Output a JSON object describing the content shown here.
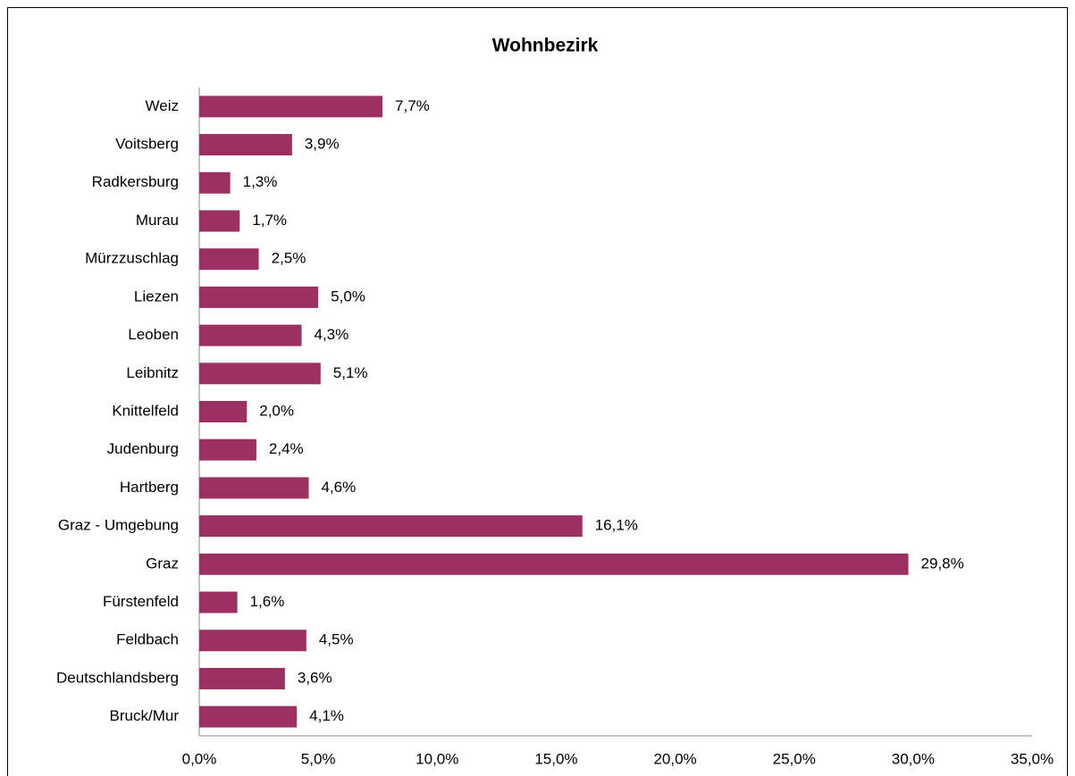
{
  "chart_data": {
    "type": "bar",
    "orientation": "horizontal",
    "title": "Wohnbezirk",
    "categories": [
      "Weiz",
      "Voitsberg",
      "Radkersburg",
      "Murau",
      "Mürzzuschlag",
      "Liezen",
      "Leoben",
      "Leibnitz",
      "Knittelfeld",
      "Judenburg",
      "Hartberg",
      "Graz - Umgebung",
      "Graz",
      "Fürstenfeld",
      "Feldbach",
      "Deutschlandsberg",
      "Bruck/Mur"
    ],
    "values": [
      7.7,
      3.9,
      1.3,
      1.7,
      2.5,
      5.0,
      4.3,
      5.1,
      2.0,
      2.4,
      4.6,
      16.1,
      29.8,
      1.6,
      4.5,
      3.6,
      4.1
    ],
    "value_labels": [
      "7,7%",
      "3,9%",
      "1,3%",
      "1,7%",
      "2,5%",
      "5,0%",
      "4,3%",
      "5,1%",
      "2,0%",
      "2,4%",
      "4,6%",
      "16,1%",
      "29,8%",
      "1,6%",
      "4,5%",
      "3,6%",
      "4,1%"
    ],
    "color": "#9b3163",
    "xlim": [
      0,
      35
    ],
    "xticks": [
      {
        "value": 0,
        "label": "0,0%"
      },
      {
        "value": 5,
        "label": "5,0%"
      },
      {
        "value": 10,
        "label": "10,0%"
      },
      {
        "value": 15,
        "label": "15,0%"
      },
      {
        "value": 20,
        "label": "20,0%"
      },
      {
        "value": 25,
        "label": "25,0%"
      },
      {
        "value": 30,
        "label": "30,0%"
      },
      {
        "value": 35,
        "label": "35,0%"
      }
    ],
    "grid": false
  }
}
